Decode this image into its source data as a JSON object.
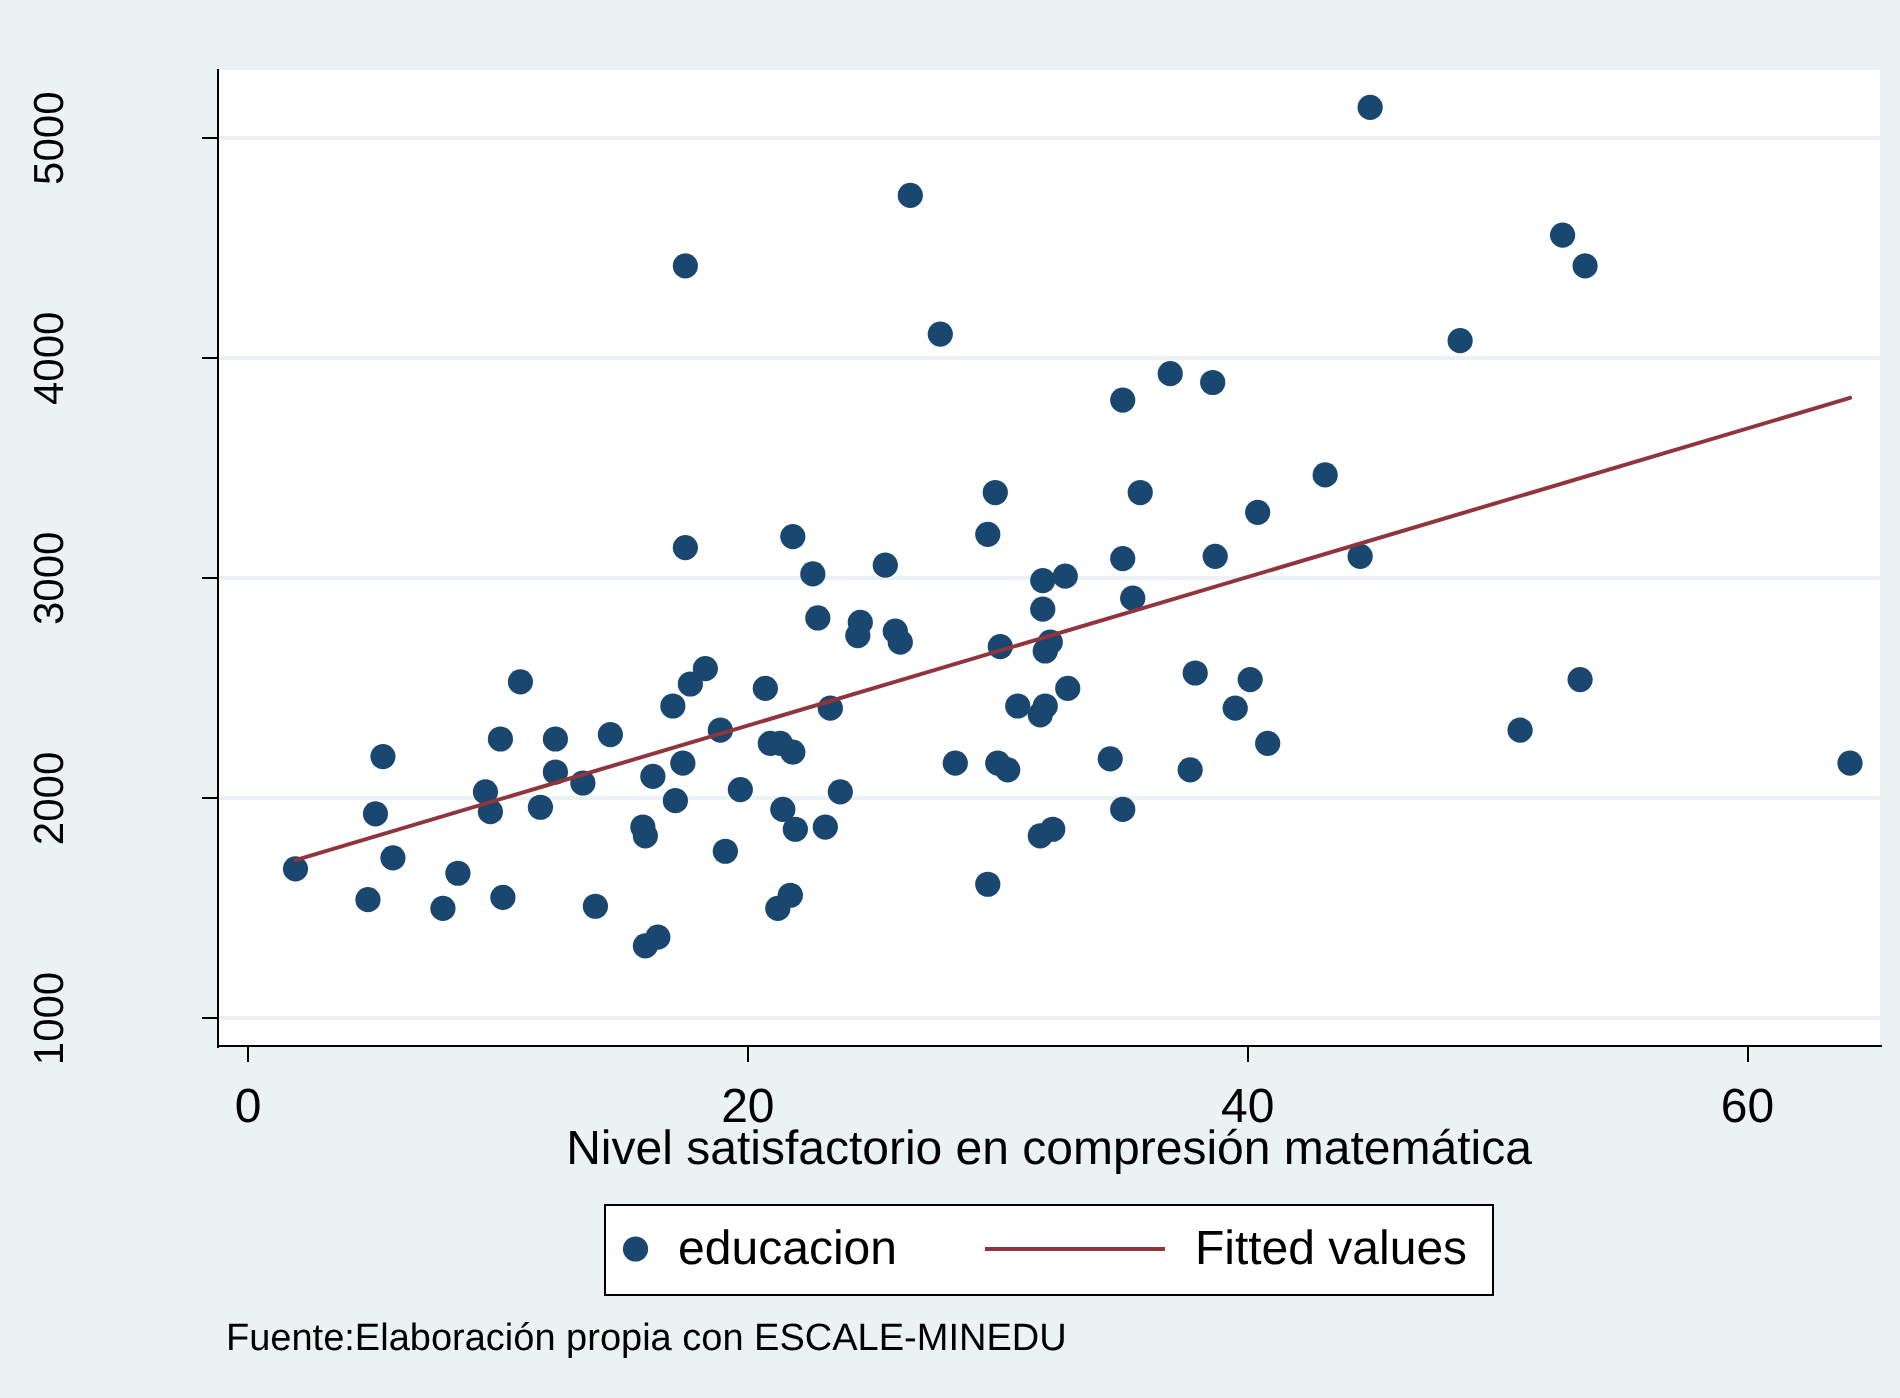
{
  "chart_data": {
    "type": "scatter",
    "xlabel": "Nivel satisfactorio en compresión matemática",
    "annotations": [
      "Fuente:Elaboración propia con ESCALE-MINEDU"
    ],
    "xlim": [
      -1.2,
      65.3
    ],
    "ylim": [
      875,
      5310
    ],
    "xticks": [
      0,
      20,
      40,
      60
    ],
    "yticks": [
      1000,
      2000,
      3000,
      4000,
      5000
    ],
    "grid": "y",
    "legend": "bottom",
    "series": [
      {
        "name": "educacion",
        "type": "scatter",
        "marker": "circle",
        "color": "#1a476f",
        "x": [
          1.9,
          5.4,
          5.1,
          5.8,
          4.8,
          8.4,
          7.8,
          10.2,
          10.9,
          10.1,
          9.5,
          9.7,
          11.7,
          12.3,
          12.3,
          13.4,
          14.5,
          13.9,
          16.2,
          15.8,
          15.9,
          15.9,
          16.4,
          17.0,
          17.7,
          18.3,
          17.4,
          17.1,
          18.9,
          19.1,
          19.7,
          20.7,
          20.9,
          21.3,
          21.8,
          21.4,
          21.9,
          21.2,
          21.7,
          17.5,
          17.5,
          21.8,
          22.6,
          25.5,
          22.8,
          24.5,
          24.4,
          25.9,
          26.1,
          23.3,
          23.1,
          23.7,
          26.5,
          27.7,
          28.3,
          29.6,
          29.9,
          29.6,
          30.0,
          30.4,
          30.1,
          30.8,
          31.7,
          31.9,
          31.8,
          32.7,
          31.8,
          32.1,
          31.9,
          32.8,
          31.7,
          32.2,
          34.5,
          35.0,
          35.0,
          35.0,
          35.4,
          35.7,
          36.9,
          37.9,
          37.7,
          38.6,
          38.7,
          39.5,
          40.1,
          40.4,
          40.8,
          43.1,
          44.5,
          44.9,
          48.5,
          50.9,
          52.6,
          53.3,
          53.5,
          64.1
        ],
        "values": [
          1680,
          2190,
          1930,
          1730,
          1540,
          1660,
          1500,
          1550,
          2530,
          2270,
          2030,
          1940,
          1960,
          2270,
          2120,
          2070,
          2290,
          1510,
          2100,
          1870,
          1830,
          1330,
          1370,
          2420,
          2520,
          2590,
          2160,
          1990,
          2310,
          1760,
          2040,
          2500,
          2250,
          2250,
          2210,
          1950,
          1860,
          1500,
          1560,
          4420,
          3140,
          3190,
          3020,
          3060,
          2820,
          2800,
          2740,
          2760,
          2710,
          2410,
          1870,
          2030,
          4740,
          4110,
          2160,
          3200,
          3390,
          1610,
          2160,
          2130,
          2690,
          2420,
          2380,
          2420,
          2990,
          3010,
          2860,
          2710,
          2670,
          2500,
          1830,
          1860,
          2180,
          3810,
          3090,
          1950,
          2910,
          3390,
          3930,
          2570,
          2130,
          3890,
          3100,
          2410,
          2540,
          3300,
          2250,
          3470,
          3100,
          5140,
          4080,
          2310,
          4560,
          2540,
          4420,
          2160
        ]
      },
      {
        "name": "Fitted values",
        "type": "line",
        "marker": "none",
        "line_style": "solid",
        "color": "#90353b",
        "x": [
          1.9,
          64.1
        ],
        "values": [
          1720,
          3820
        ]
      }
    ]
  }
}
